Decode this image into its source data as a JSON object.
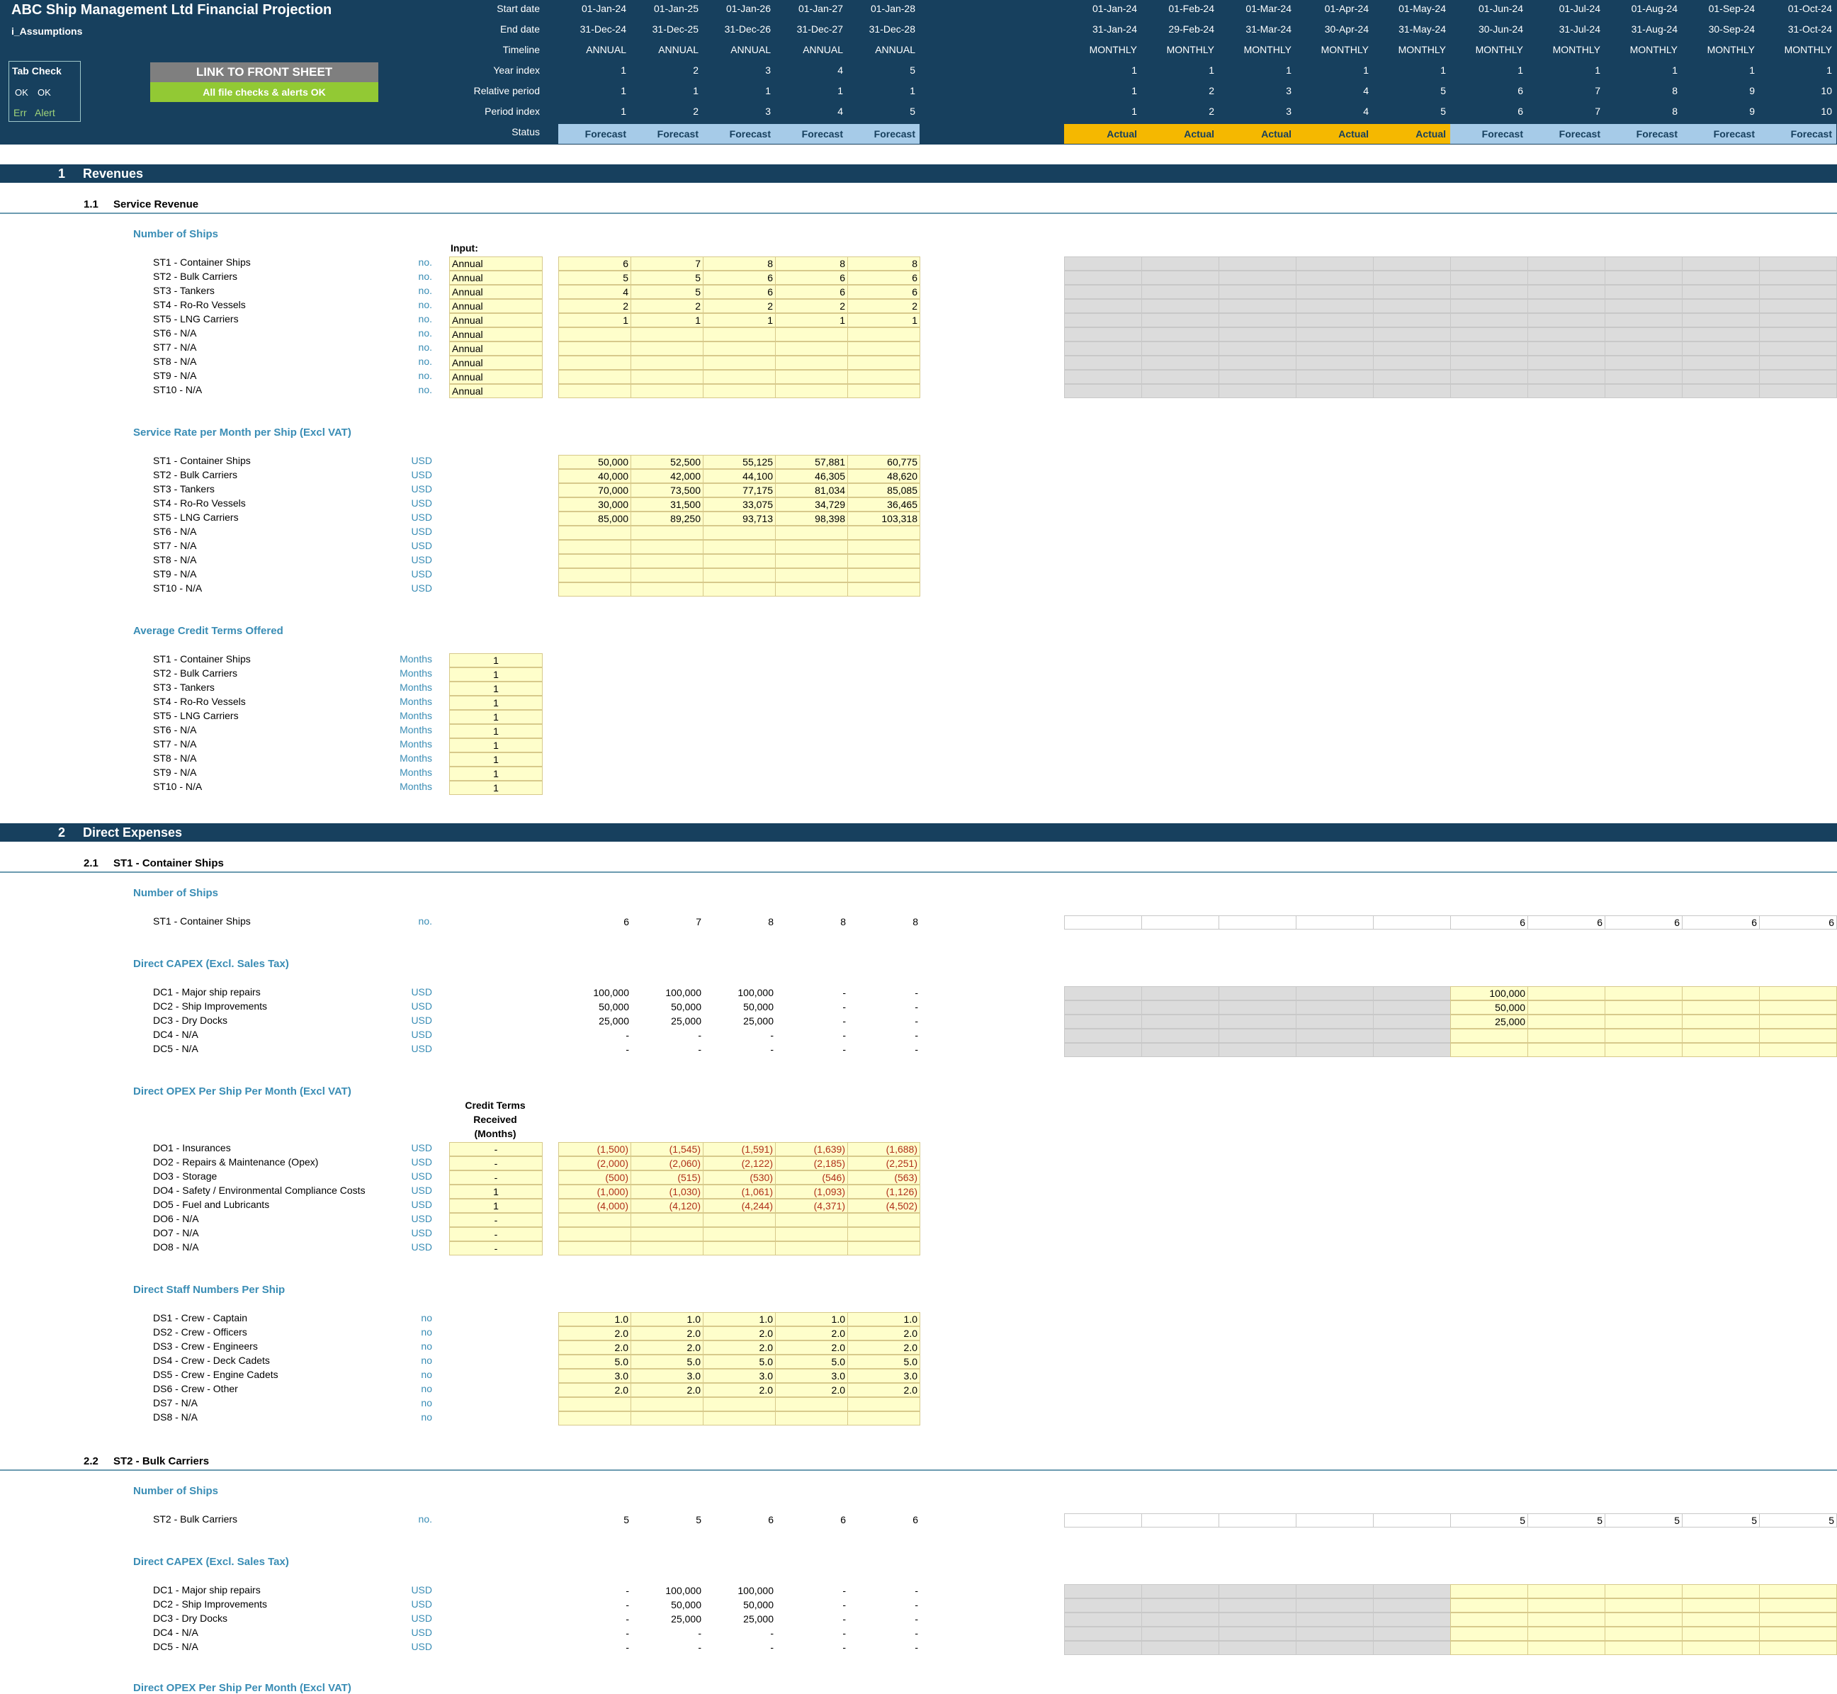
{
  "header": {
    "title": "ABC Ship Management Ltd Financial Projection",
    "sheet": "i_Assumptions",
    "tab_check": {
      "title": "Tab Check",
      "ok1": "OK",
      "ok2": "OK",
      "err": "Err",
      "alert": "Alert"
    },
    "link_button": "LINK TO FRONT SHEET",
    "checks_ok": "All file checks & alerts OK",
    "row_labels": [
      "Start date",
      "End date",
      "Timeline",
      "Year index",
      "Relative period",
      "Period index",
      "Status"
    ],
    "annual": [
      {
        "start": "01-Jan-24",
        "end": "31-Dec-24",
        "timeline": "ANNUAL",
        "year": "1",
        "rel": "1",
        "idx": "1",
        "status": "Forecast"
      },
      {
        "start": "01-Jan-25",
        "end": "31-Dec-25",
        "timeline": "ANNUAL",
        "year": "2",
        "rel": "1",
        "idx": "2",
        "status": "Forecast"
      },
      {
        "start": "01-Jan-26",
        "end": "31-Dec-26",
        "timeline": "ANNUAL",
        "year": "3",
        "rel": "1",
        "idx": "3",
        "status": "Forecast"
      },
      {
        "start": "01-Jan-27",
        "end": "31-Dec-27",
        "timeline": "ANNUAL",
        "year": "4",
        "rel": "1",
        "idx": "4",
        "status": "Forecast"
      },
      {
        "start": "01-Jan-28",
        "end": "31-Dec-28",
        "timeline": "ANNUAL",
        "year": "5",
        "rel": "1",
        "idx": "5",
        "status": "Forecast"
      }
    ],
    "monthly": [
      {
        "start": "01-Jan-24",
        "end": "31-Jan-24",
        "timeline": "MONTHLY",
        "year": "1",
        "rel": "1",
        "idx": "1",
        "status": "Actual"
      },
      {
        "start": "01-Feb-24",
        "end": "29-Feb-24",
        "timeline": "MONTHLY",
        "year": "1",
        "rel": "2",
        "idx": "2",
        "status": "Actual"
      },
      {
        "start": "01-Mar-24",
        "end": "31-Mar-24",
        "timeline": "MONTHLY",
        "year": "1",
        "rel": "3",
        "idx": "3",
        "status": "Actual"
      },
      {
        "start": "01-Apr-24",
        "end": "30-Apr-24",
        "timeline": "MONTHLY",
        "year": "1",
        "rel": "4",
        "idx": "4",
        "status": "Actual"
      },
      {
        "start": "01-May-24",
        "end": "31-May-24",
        "timeline": "MONTHLY",
        "year": "1",
        "rel": "5",
        "idx": "5",
        "status": "Actual"
      },
      {
        "start": "01-Jun-24",
        "end": "30-Jun-24",
        "timeline": "MONTHLY",
        "year": "1",
        "rel": "6",
        "idx": "6",
        "status": "Forecast"
      },
      {
        "start": "01-Jul-24",
        "end": "31-Jul-24",
        "timeline": "MONTHLY",
        "year": "1",
        "rel": "7",
        "idx": "7",
        "status": "Forecast"
      },
      {
        "start": "01-Aug-24",
        "end": "31-Aug-24",
        "timeline": "MONTHLY",
        "year": "1",
        "rel": "8",
        "idx": "8",
        "status": "Forecast"
      },
      {
        "start": "01-Sep-24",
        "end": "30-Sep-24",
        "timeline": "MONTHLY",
        "year": "1",
        "rel": "9",
        "idx": "9",
        "status": "Forecast"
      },
      {
        "start": "01-Oct-24",
        "end": "31-Oct-24",
        "timeline": "MONTHLY",
        "year": "1",
        "rel": "10",
        "idx": "10",
        "status": "Forecast"
      }
    ],
    "colors": {
      "navy": "#17405e",
      "forecast": "#a6cbe8",
      "actual": "#f5b800",
      "ok_green": "#92c934",
      "input_yellow": "#fefecb"
    }
  },
  "sections": {
    "s1": {
      "num": "1",
      "title": "Revenues"
    },
    "s1_1": {
      "num": "1.1",
      "title": "Service Revenue"
    },
    "s2": {
      "num": "2",
      "title": "Direct Expenses"
    },
    "s2_1": {
      "num": "2.1",
      "title": "ST1 - Container Ships"
    },
    "s2_2": {
      "num": "2.2",
      "title": "ST2 - Bulk Carriers"
    }
  },
  "ships": {
    "title": "Number of Ships",
    "input_label": "Input:",
    "rows": [
      {
        "label": "ST1 - Container Ships",
        "unit": "no.",
        "input": "Annual",
        "vals": [
          "6",
          "7",
          "8",
          "8",
          "8"
        ]
      },
      {
        "label": "ST2 - Bulk Carriers",
        "unit": "no.",
        "input": "Annual",
        "vals": [
          "5",
          "5",
          "6",
          "6",
          "6"
        ]
      },
      {
        "label": "ST3 - Tankers",
        "unit": "no.",
        "input": "Annual",
        "vals": [
          "4",
          "5",
          "6",
          "6",
          "6"
        ]
      },
      {
        "label": "ST4 - Ro-Ro Vessels",
        "unit": "no.",
        "input": "Annual",
        "vals": [
          "2",
          "2",
          "2",
          "2",
          "2"
        ]
      },
      {
        "label": "ST5 - LNG Carriers",
        "unit": "no.",
        "input": "Annual",
        "vals": [
          "1",
          "1",
          "1",
          "1",
          "1"
        ]
      },
      {
        "label": "ST6 - N/A",
        "unit": "no.",
        "input": "Annual",
        "vals": [
          "",
          "",
          "",
          "",
          ""
        ]
      },
      {
        "label": "ST7 - N/A",
        "unit": "no.",
        "input": "Annual",
        "vals": [
          "",
          "",
          "",
          "",
          ""
        ]
      },
      {
        "label": "ST8 - N/A",
        "unit": "no.",
        "input": "Annual",
        "vals": [
          "",
          "",
          "",
          "",
          ""
        ]
      },
      {
        "label": "ST9 - N/A",
        "unit": "no.",
        "input": "Annual",
        "vals": [
          "",
          "",
          "",
          "",
          ""
        ]
      },
      {
        "label": "ST10 - N/A",
        "unit": "no.",
        "input": "Annual",
        "vals": [
          "",
          "",
          "",
          "",
          ""
        ]
      }
    ]
  },
  "rates": {
    "title": "Service Rate per Month per Ship (Excl VAT)",
    "rows": [
      {
        "label": "ST1 - Container Ships",
        "unit": "USD",
        "vals": [
          "50,000",
          "52,500",
          "55,125",
          "57,881",
          "60,775"
        ]
      },
      {
        "label": "ST2 - Bulk Carriers",
        "unit": "USD",
        "vals": [
          "40,000",
          "42,000",
          "44,100",
          "46,305",
          "48,620"
        ]
      },
      {
        "label": "ST3 - Tankers",
        "unit": "USD",
        "vals": [
          "70,000",
          "73,500",
          "77,175",
          "81,034",
          "85,085"
        ]
      },
      {
        "label": "ST4 - Ro-Ro Vessels",
        "unit": "USD",
        "vals": [
          "30,000",
          "31,500",
          "33,075",
          "34,729",
          "36,465"
        ]
      },
      {
        "label": "ST5 - LNG Carriers",
        "unit": "USD",
        "vals": [
          "85,000",
          "89,250",
          "93,713",
          "98,398",
          "103,318"
        ]
      },
      {
        "label": "ST6 - N/A",
        "unit": "USD",
        "vals": [
          "",
          "",
          "",
          "",
          ""
        ]
      },
      {
        "label": "ST7 - N/A",
        "unit": "USD",
        "vals": [
          "",
          "",
          "",
          "",
          ""
        ]
      },
      {
        "label": "ST8 - N/A",
        "unit": "USD",
        "vals": [
          "",
          "",
          "",
          "",
          ""
        ]
      },
      {
        "label": "ST9 - N/A",
        "unit": "USD",
        "vals": [
          "",
          "",
          "",
          "",
          ""
        ]
      },
      {
        "label": "ST10 - N/A",
        "unit": "USD",
        "vals": [
          "",
          "",
          "",
          "",
          ""
        ]
      }
    ]
  },
  "credit": {
    "title": "Average Credit Terms Offered",
    "rows": [
      {
        "label": "ST1 - Container Ships",
        "unit": "Months",
        "val": "1"
      },
      {
        "label": "ST2 - Bulk Carriers",
        "unit": "Months",
        "val": "1"
      },
      {
        "label": "ST3 - Tankers",
        "unit": "Months",
        "val": "1"
      },
      {
        "label": "ST4 - Ro-Ro Vessels",
        "unit": "Months",
        "val": "1"
      },
      {
        "label": "ST5 - LNG Carriers",
        "unit": "Months",
        "val": "1"
      },
      {
        "label": "ST6 - N/A",
        "unit": "Months",
        "val": "1"
      },
      {
        "label": "ST7 - N/A",
        "unit": "Months",
        "val": "1"
      },
      {
        "label": "ST8 - N/A",
        "unit": "Months",
        "val": "1"
      },
      {
        "label": "ST9 - N/A",
        "unit": "Months",
        "val": "1"
      },
      {
        "label": "ST10 - N/A",
        "unit": "Months",
        "val": "1"
      }
    ]
  },
  "st1": {
    "ships_title": "Number of Ships",
    "ships_row": {
      "label": "ST1 - Container Ships",
      "unit": "no.",
      "vals": [
        "6",
        "7",
        "8",
        "8",
        "8"
      ],
      "monthly": [
        "",
        "",
        "",
        "",
        "",
        "6",
        "6",
        "6",
        "6",
        "6"
      ]
    },
    "capex_title": "Direct CAPEX (Excl. Sales Tax)",
    "capex": [
      {
        "label": "DC1 - Major ship repairs",
        "unit": "USD",
        "vals": [
          "100,000",
          "100,000",
          "100,000",
          "-",
          "-"
        ],
        "monthly": [
          "",
          "",
          "",
          "",
          "",
          "100,000",
          "",
          "",
          "",
          ""
        ]
      },
      {
        "label": "DC2 - Ship Improvements",
        "unit": "USD",
        "vals": [
          "50,000",
          "50,000",
          "50,000",
          "-",
          "-"
        ],
        "monthly": [
          "",
          "",
          "",
          "",
          "",
          "50,000",
          "",
          "",
          "",
          ""
        ]
      },
      {
        "label": "DC3 - Dry Docks",
        "unit": "USD",
        "vals": [
          "25,000",
          "25,000",
          "25,000",
          "-",
          "-"
        ],
        "monthly": [
          "",
          "",
          "",
          "",
          "",
          "25,000",
          "",
          "",
          "",
          ""
        ]
      },
      {
        "label": "DC4 - N/A",
        "unit": "USD",
        "vals": [
          "-",
          "-",
          "-",
          "-",
          "-"
        ],
        "monthly": [
          "",
          "",
          "",
          "",
          "",
          "",
          "",
          "",
          "",
          ""
        ]
      },
      {
        "label": "DC5 - N/A",
        "unit": "USD",
        "vals": [
          "-",
          "-",
          "-",
          "-",
          "-"
        ],
        "monthly": [
          "",
          "",
          "",
          "",
          "",
          "",
          "",
          "",
          "",
          ""
        ]
      }
    ],
    "opex_title": "Direct OPEX Per Ship Per Month (Excl VAT)",
    "credit_hdr1": "Credit Terms",
    "credit_hdr2": "Received",
    "credit_hdr3": "(Months)",
    "opex": [
      {
        "label": "DO1 - Insurances",
        "unit": "USD",
        "credit": "-",
        "vals": [
          "(1,500)",
          "(1,545)",
          "(1,591)",
          "(1,639)",
          "(1,688)"
        ]
      },
      {
        "label": "DO2 - Repairs & Maintenance (Opex)",
        "unit": "USD",
        "credit": "-",
        "vals": [
          "(2,000)",
          "(2,060)",
          "(2,122)",
          "(2,185)",
          "(2,251)"
        ]
      },
      {
        "label": "DO3 - Storage",
        "unit": "USD",
        "credit": "-",
        "vals": [
          "(500)",
          "(515)",
          "(530)",
          "(546)",
          "(563)"
        ]
      },
      {
        "label": "DO4 - Safety / Environmental Compliance Costs",
        "unit": "USD",
        "credit": "1",
        "vals": [
          "(1,000)",
          "(1,030)",
          "(1,061)",
          "(1,093)",
          "(1,126)"
        ]
      },
      {
        "label": "DO5 - Fuel and Lubricants",
        "unit": "USD",
        "credit": "1",
        "vals": [
          "(4,000)",
          "(4,120)",
          "(4,244)",
          "(4,371)",
          "(4,502)"
        ]
      },
      {
        "label": "DO6 - N/A",
        "unit": "USD",
        "credit": "-",
        "vals": [
          "",
          "",
          "",
          "",
          ""
        ]
      },
      {
        "label": "DO7 - N/A",
        "unit": "USD",
        "credit": "-",
        "vals": [
          "",
          "",
          "",
          "",
          ""
        ]
      },
      {
        "label": "DO8 - N/A",
        "unit": "USD",
        "credit": "-",
        "vals": [
          "",
          "",
          "",
          "",
          ""
        ]
      }
    ],
    "staff_title": "Direct Staff Numbers Per Ship",
    "staff": [
      {
        "label": "DS1 - Crew - Captain",
        "unit": "no",
        "vals": [
          "1.0",
          "1.0",
          "1.0",
          "1.0",
          "1.0"
        ]
      },
      {
        "label": "DS2 - Crew - Officers",
        "unit": "no",
        "vals": [
          "2.0",
          "2.0",
          "2.0",
          "2.0",
          "2.0"
        ]
      },
      {
        "label": "DS3 - Crew - Engineers",
        "unit": "no",
        "vals": [
          "2.0",
          "2.0",
          "2.0",
          "2.0",
          "2.0"
        ]
      },
      {
        "label": "DS4 - Crew - Deck Cadets",
        "unit": "no",
        "vals": [
          "5.0",
          "5.0",
          "5.0",
          "5.0",
          "5.0"
        ]
      },
      {
        "label": "DS5 - Crew - Engine Cadets",
        "unit": "no",
        "vals": [
          "3.0",
          "3.0",
          "3.0",
          "3.0",
          "3.0"
        ]
      },
      {
        "label": "DS6 - Crew - Other",
        "unit": "no",
        "vals": [
          "2.0",
          "2.0",
          "2.0",
          "2.0",
          "2.0"
        ]
      },
      {
        "label": "DS7 - N/A",
        "unit": "no",
        "vals": [
          "",
          "",
          "",
          "",
          ""
        ]
      },
      {
        "label": "DS8 - N/A",
        "unit": "no",
        "vals": [
          "",
          "",
          "",
          "",
          ""
        ]
      }
    ]
  },
  "st2": {
    "ships_title": "Number of Ships",
    "ships_row": {
      "label": "ST2 - Bulk Carriers",
      "unit": "no.",
      "vals": [
        "5",
        "5",
        "6",
        "6",
        "6"
      ],
      "monthly": [
        "",
        "",
        "",
        "",
        "",
        "5",
        "5",
        "5",
        "5",
        "5"
      ]
    },
    "capex_title": "Direct CAPEX (Excl. Sales Tax)",
    "capex": [
      {
        "label": "DC1 - Major ship repairs",
        "unit": "USD",
        "vals": [
          "-",
          "100,000",
          "100,000",
          "-",
          "-"
        ]
      },
      {
        "label": "DC2 - Ship Improvements",
        "unit": "USD",
        "vals": [
          "-",
          "50,000",
          "50,000",
          "-",
          "-"
        ]
      },
      {
        "label": "DC3 - Dry Docks",
        "unit": "USD",
        "vals": [
          "-",
          "25,000",
          "25,000",
          "-",
          "-"
        ]
      },
      {
        "label": "DC4 - N/A",
        "unit": "USD",
        "vals": [
          "-",
          "-",
          "-",
          "-",
          "-"
        ]
      },
      {
        "label": "DC5 - N/A",
        "unit": "USD",
        "vals": [
          "-",
          "-",
          "-",
          "-",
          "-"
        ]
      }
    ],
    "opex_title": "Direct OPEX Per Ship Per Month (Excl VAT)"
  }
}
